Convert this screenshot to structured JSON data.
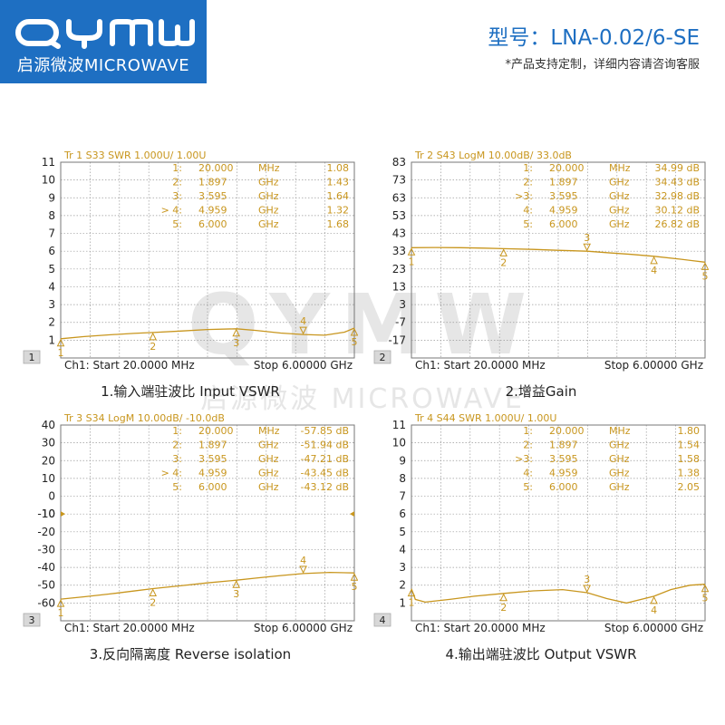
{
  "brand": {
    "logo_text": "QYMW",
    "subtitle": "启源微波MICROWAVE",
    "watermark_main": "QYMW",
    "watermark_sub": "启源微波 MICROWAVE"
  },
  "header": {
    "model": "型号：LNA-0.02/6-SE",
    "note": "*产品支持定制，详细内容请咨询客服"
  },
  "colors": {
    "trace": "#c8961e",
    "grid": "#9a9a9a",
    "frame": "#777777",
    "brand": "#1e6fc2"
  },
  "chart_data": [
    {
      "type": "line",
      "panel_number": "1",
      "header": "Tr  1  S33 SWR 1.000U/  1.00U",
      "yticks": [
        "11",
        "10",
        "9",
        "8",
        "7",
        "6",
        "5",
        "4",
        "3",
        "2",
        "1",
        ""
      ],
      "ylim": [
        0,
        11
      ],
      "xlim": [
        0.02,
        6.0
      ],
      "footer_left": "Ch1:  Start   20.0000 MHz",
      "footer_right": "Stop  6.00000 GHz",
      "caption": "1.输入端驻波比 Input VSWR",
      "ref_label": "",
      "markers": [
        {
          "idx": "1:",
          "freq": "20.000",
          "unit": "MHz",
          "value": "1.08"
        },
        {
          "idx": "2:",
          "freq": "1.897",
          "unit": "GHz",
          "value": "1.43"
        },
        {
          "idx": "3:",
          "freq": "3.595",
          "unit": "GHz",
          "value": "1.64"
        },
        {
          "idx": "> 4:",
          "freq": "4.959",
          "unit": "GHz",
          "value": "1.32"
        },
        {
          "idx": "5:",
          "freq": "6.000",
          "unit": "GHz",
          "value": "1.68"
        }
      ],
      "trace": {
        "x": [
          0.02,
          0.5,
          1.0,
          1.5,
          1.9,
          2.5,
          3.0,
          3.6,
          4.0,
          4.5,
          4.96,
          5.4,
          5.8,
          6.0
        ],
        "y": [
          1.08,
          1.2,
          1.3,
          1.38,
          1.43,
          1.52,
          1.6,
          1.64,
          1.55,
          1.4,
          1.32,
          1.28,
          1.45,
          1.68
        ]
      },
      "marker_points": [
        {
          "label": "1",
          "x": 0.02,
          "y": 1.08,
          "above": false
        },
        {
          "label": "2",
          "x": 1.897,
          "y": 1.43,
          "above": false
        },
        {
          "label": "3",
          "x": 3.595,
          "y": 1.64,
          "above": false
        },
        {
          "label": "4",
          "x": 4.959,
          "y": 1.32,
          "above": true
        },
        {
          "label": "5",
          "x": 6.0,
          "y": 1.68,
          "above": false
        }
      ]
    },
    {
      "type": "line",
      "panel_number": "2",
      "header": "Tr  2  S43 LogM 10.00dB/  33.0dB",
      "yticks": [
        "83",
        "73",
        "63",
        "53",
        "43",
        "33",
        "23",
        "13",
        "3",
        "-7",
        "-17",
        ""
      ],
      "ylim": [
        -27,
        83
      ],
      "xlim": [
        0.02,
        6.0
      ],
      "footer_left": "Ch1:  Start   20.0000 MHz",
      "footer_right": "Stop  6.00000 GHz",
      "caption": "2.增益Gain",
      "ref_label": "",
      "markers": [
        {
          "idx": "1:",
          "freq": "20.000",
          "unit": "MHz",
          "value": "34.99 dB"
        },
        {
          "idx": "2:",
          "freq": "1.897",
          "unit": "GHz",
          "value": "34.43 dB"
        },
        {
          "idx": ">3:",
          "freq": "3.595",
          "unit": "GHz",
          "value": "32.98 dB"
        },
        {
          "idx": "4:",
          "freq": "4.959",
          "unit": "GHz",
          "value": "30.12 dB"
        },
        {
          "idx": "5:",
          "freq": "6.000",
          "unit": "GHz",
          "value": "26.82 dB"
        }
      ],
      "trace": {
        "x": [
          0.02,
          0.5,
          1.0,
          1.5,
          1.9,
          2.5,
          3.0,
          3.6,
          4.0,
          4.5,
          4.96,
          5.5,
          6.0
        ],
        "y": [
          34.99,
          35.1,
          35.0,
          34.7,
          34.43,
          34.0,
          33.5,
          32.98,
          32.2,
          31.2,
          30.12,
          28.5,
          26.82
        ]
      },
      "marker_points": [
        {
          "label": "1",
          "x": 0.02,
          "y": 34.99,
          "above": false
        },
        {
          "label": "2",
          "x": 1.897,
          "y": 34.43,
          "above": false
        },
        {
          "label": "3",
          "x": 3.595,
          "y": 32.98,
          "above": true
        },
        {
          "label": "4",
          "x": 4.959,
          "y": 30.12,
          "above": false
        },
        {
          "label": "5",
          "x": 6.0,
          "y": 26.82,
          "above": false
        }
      ]
    },
    {
      "type": "line",
      "panel_number": "3",
      "header": "Tr  3  S34 LogM 10.00dB/  -10.0dB",
      "yticks": [
        "40",
        "30",
        "20",
        "10",
        "0",
        "-10",
        "-20",
        "-30",
        "-40",
        "-50",
        "-60",
        ""
      ],
      "ylim": [
        -70,
        40
      ],
      "xlim": [
        0.02,
        6.0
      ],
      "footer_left": "Ch1:  Start   20.0000 MHz",
      "footer_right": "Stop  6.00000 GHz",
      "caption": "3.反向隔离度 Reverse isolation",
      "ref_label": "-10",
      "markers": [
        {
          "idx": "1:",
          "freq": "20.000",
          "unit": "MHz",
          "value": "-57.85 dB"
        },
        {
          "idx": "2:",
          "freq": "1.897",
          "unit": "GHz",
          "value": "-51.94 dB"
        },
        {
          "idx": "3:",
          "freq": "3.595",
          "unit": "GHz",
          "value": "-47.21 dB"
        },
        {
          "idx": "> 4:",
          "freq": "4.959",
          "unit": "GHz",
          "value": "-43.45 dB"
        },
        {
          "idx": "5:",
          "freq": "6.000",
          "unit": "GHz",
          "value": "-43.12 dB"
        }
      ],
      "trace": {
        "x": [
          0.02,
          0.5,
          1.0,
          1.5,
          1.9,
          2.5,
          3.0,
          3.6,
          4.0,
          4.5,
          4.96,
          5.5,
          6.0
        ],
        "y": [
          -57.85,
          -56.5,
          -55.0,
          -53.3,
          -51.94,
          -50.2,
          -48.7,
          -47.21,
          -46.0,
          -44.6,
          -43.45,
          -42.8,
          -43.12
        ]
      },
      "marker_points": [
        {
          "label": "1",
          "x": 0.02,
          "y": -57.85,
          "above": false
        },
        {
          "label": "2",
          "x": 1.897,
          "y": -51.94,
          "above": false
        },
        {
          "label": "3",
          "x": 3.595,
          "y": -47.21,
          "above": false
        },
        {
          "label": "4",
          "x": 4.959,
          "y": -43.45,
          "above": true
        },
        {
          "label": "5",
          "x": 6.0,
          "y": -43.12,
          "above": false
        }
      ]
    },
    {
      "type": "line",
      "panel_number": "4",
      "header": "Tr  4  S44 SWR 1.000U/  1.00U",
      "yticks": [
        "11",
        "10",
        "9",
        "8",
        "7",
        "6",
        "5",
        "4",
        "3",
        "2",
        "1",
        ""
      ],
      "ylim": [
        0,
        11
      ],
      "xlim": [
        0.02,
        6.0
      ],
      "footer_left": "Ch1:  Start   20.0000 MHz",
      "footer_right": "Stop  6.00000 GHz",
      "caption": "4.输出端驻波比 Output VSWR",
      "ref_label": "",
      "markers": [
        {
          "idx": "1:",
          "freq": "20.000",
          "unit": "MHz",
          "value": "1.80"
        },
        {
          "idx": "2:",
          "freq": "1.897",
          "unit": "GHz",
          "value": "1.54"
        },
        {
          "idx": ">3:",
          "freq": "3.595",
          "unit": "GHz",
          "value": "1.58"
        },
        {
          "idx": "4:",
          "freq": "4.959",
          "unit": "GHz",
          "value": "1.38"
        },
        {
          "idx": "5:",
          "freq": "6.000",
          "unit": "GHz",
          "value": "2.05"
        }
      ],
      "trace": {
        "x": [
          0.02,
          0.1,
          0.3,
          0.8,
          1.3,
          1.9,
          2.5,
          3.1,
          3.6,
          4.0,
          4.4,
          4.96,
          5.3,
          5.7,
          6.0
        ],
        "y": [
          1.8,
          1.2,
          1.05,
          1.2,
          1.38,
          1.54,
          1.68,
          1.75,
          1.58,
          1.25,
          1.0,
          1.38,
          1.75,
          2.0,
          2.05
        ]
      },
      "marker_points": [
        {
          "label": "1",
          "x": 0.02,
          "y": 1.8,
          "above": false
        },
        {
          "label": "2",
          "x": 1.897,
          "y": 1.54,
          "above": false
        },
        {
          "label": "3",
          "x": 3.595,
          "y": 1.58,
          "above": true
        },
        {
          "label": "4",
          "x": 4.959,
          "y": 1.38,
          "above": false
        },
        {
          "label": "5",
          "x": 6.0,
          "y": 2.05,
          "above": false
        }
      ]
    }
  ]
}
